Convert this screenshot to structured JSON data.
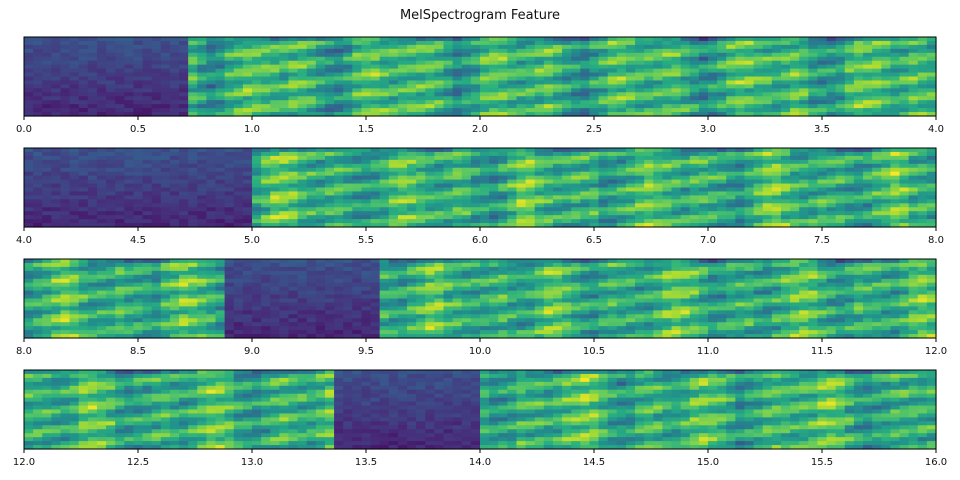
{
  "chart_data": {
    "type": "heatmap",
    "title": "MelSpectrogram Feature",
    "colormap": "viridis",
    "colors": [
      "#440154",
      "#472c7a",
      "#3b528b",
      "#2c728e",
      "#21918c",
      "#28ae80",
      "#5ec962",
      "#addc30",
      "#fde725"
    ],
    "panels": [
      {
        "xlim": [
          0,
          4
        ],
        "ticks": [
          "0.0",
          "0.5",
          "1.0",
          "1.5",
          "2.0",
          "2.5",
          "3.0",
          "3.5",
          "4.0"
        ],
        "silence": [
          [
            0,
            0.73
          ]
        ]
      },
      {
        "xlim": [
          4,
          8
        ],
        "ticks": [
          "4.0",
          "4.5",
          "5.0",
          "5.5",
          "6.0",
          "6.5",
          "7.0",
          "7.5",
          "8.0"
        ],
        "silence": [
          [
            4.0,
            4.98
          ]
        ]
      },
      {
        "xlim": [
          8,
          12
        ],
        "ticks": [
          "8.0",
          "8.5",
          "9.0",
          "9.5",
          "10.0",
          "10.5",
          "11.0",
          "11.5",
          "12.0"
        ],
        "silence": [
          [
            8.9,
            9.56
          ]
        ]
      },
      {
        "xlim": [
          12,
          16
        ],
        "ticks": [
          "12.0",
          "12.5",
          "13.0",
          "13.5",
          "14.0",
          "14.5",
          "15.0",
          "15.5",
          "16.0"
        ],
        "silence": [
          [
            13.35,
            13.98
          ]
        ]
      }
    ],
    "y_ticks_visible": false,
    "grid": false
  }
}
